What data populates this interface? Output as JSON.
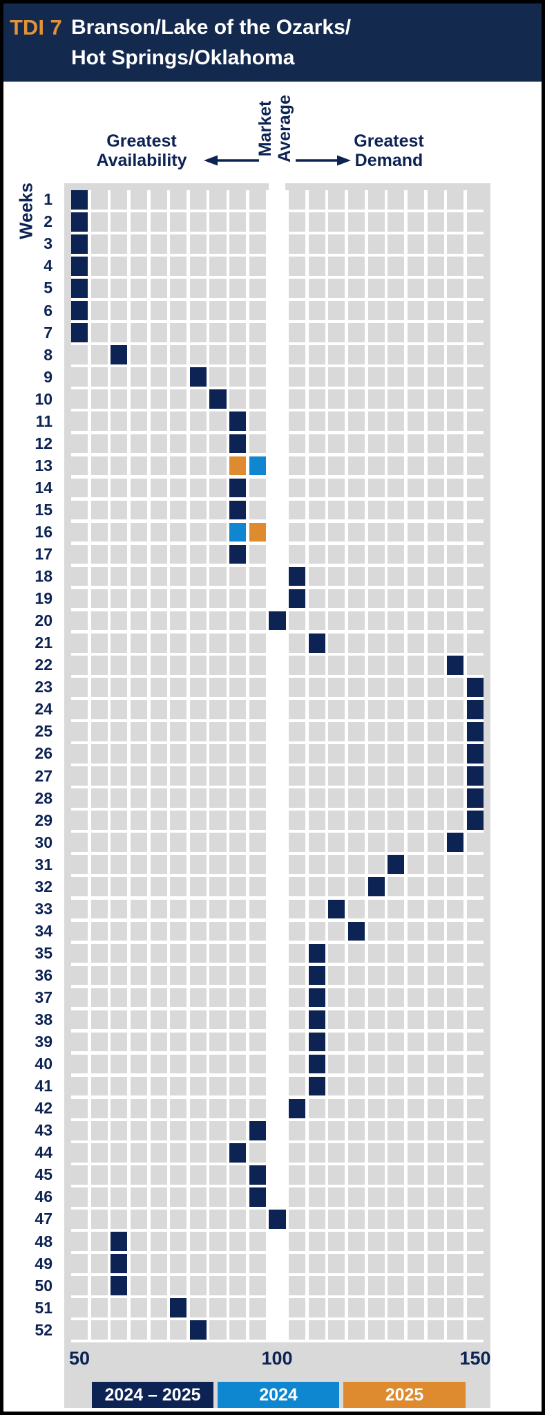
{
  "header": {
    "tag": "TDI 7",
    "title_line1": "Branson/Lake of the Ozarks/",
    "title_line2": "Hot Springs/Oklahoma"
  },
  "chart_header": {
    "availability_line1": "Greatest",
    "availability_line2": "Availability",
    "market_line1": "Market",
    "market_line2": "Average",
    "demand_line1": "Greatest",
    "demand_line2": "Demand"
  },
  "y_axis": {
    "label": "Weeks"
  },
  "x_axis": {
    "ticks": [
      "50",
      "100",
      "150"
    ]
  },
  "legend": [
    {
      "label": "2024 – 2025",
      "series": "2024-2025",
      "color": "#0d2354"
    },
    {
      "label": "2024",
      "series": "2024",
      "color": "#0f86d0"
    },
    {
      "label": "2025",
      "series": "2025",
      "color": "#dd8b2e"
    }
  ],
  "colors": {
    "header_bg": "#14294e",
    "tag_orange": "#e2923a",
    "navy_text": "#0d2354",
    "cell_gray": "#d9d9d9",
    "market_average_band": "#ffffff",
    "series": {
      "2024-2025": "#0d2354",
      "2024": "#0f86d0",
      "2025": "#dd8b2e"
    }
  },
  "chart_data": {
    "type": "heatmap",
    "title": "TDI 7 Branson/Lake of the Ozarks/Hot Springs/Oklahoma",
    "xlabel_left": "Greatest Availability",
    "xlabel_center": "Market Average",
    "xlabel_right": "Greatest Demand",
    "ylabel": "Weeks",
    "x_min": 50,
    "x_max": 150,
    "cell_step": 5,
    "columns": 21,
    "market_average": 100,
    "tick_values": [
      50,
      100,
      150
    ],
    "weeks": [
      {
        "week": 1,
        "values": [
          {
            "tdi": 50,
            "series": "2024-2025"
          }
        ]
      },
      {
        "week": 2,
        "values": [
          {
            "tdi": 50,
            "series": "2024-2025"
          }
        ]
      },
      {
        "week": 3,
        "values": [
          {
            "tdi": 50,
            "series": "2024-2025"
          }
        ]
      },
      {
        "week": 4,
        "values": [
          {
            "tdi": 50,
            "series": "2024-2025"
          }
        ]
      },
      {
        "week": 5,
        "values": [
          {
            "tdi": 50,
            "series": "2024-2025"
          }
        ]
      },
      {
        "week": 6,
        "values": [
          {
            "tdi": 50,
            "series": "2024-2025"
          }
        ]
      },
      {
        "week": 7,
        "values": [
          {
            "tdi": 50,
            "series": "2024-2025"
          }
        ]
      },
      {
        "week": 8,
        "values": [
          {
            "tdi": 60,
            "series": "2024-2025"
          }
        ]
      },
      {
        "week": 9,
        "values": [
          {
            "tdi": 80,
            "series": "2024-2025"
          }
        ]
      },
      {
        "week": 10,
        "values": [
          {
            "tdi": 85,
            "series": "2024-2025"
          }
        ]
      },
      {
        "week": 11,
        "values": [
          {
            "tdi": 90,
            "series": "2024-2025"
          }
        ]
      },
      {
        "week": 12,
        "values": [
          {
            "tdi": 90,
            "series": "2024-2025"
          }
        ]
      },
      {
        "week": 13,
        "values": [
          {
            "tdi": 90,
            "series": "2025"
          },
          {
            "tdi": 95,
            "series": "2024"
          }
        ]
      },
      {
        "week": 14,
        "values": [
          {
            "tdi": 90,
            "series": "2024-2025"
          }
        ]
      },
      {
        "week": 15,
        "values": [
          {
            "tdi": 90,
            "series": "2024-2025"
          }
        ]
      },
      {
        "week": 16,
        "values": [
          {
            "tdi": 90,
            "series": "2024"
          },
          {
            "tdi": 95,
            "series": "2025"
          }
        ]
      },
      {
        "week": 17,
        "values": [
          {
            "tdi": 90,
            "series": "2024-2025"
          }
        ]
      },
      {
        "week": 18,
        "values": [
          {
            "tdi": 105,
            "series": "2024-2025"
          }
        ]
      },
      {
        "week": 19,
        "values": [
          {
            "tdi": 105,
            "series": "2024-2025"
          }
        ]
      },
      {
        "week": 20,
        "values": [
          {
            "tdi": 100,
            "series": "2024-2025"
          }
        ]
      },
      {
        "week": 21,
        "values": [
          {
            "tdi": 110,
            "series": "2024-2025"
          }
        ]
      },
      {
        "week": 22,
        "values": [
          {
            "tdi": 145,
            "series": "2024-2025"
          }
        ]
      },
      {
        "week": 23,
        "values": [
          {
            "tdi": 150,
            "series": "2024-2025"
          }
        ]
      },
      {
        "week": 24,
        "values": [
          {
            "tdi": 150,
            "series": "2024-2025"
          }
        ]
      },
      {
        "week": 25,
        "values": [
          {
            "tdi": 150,
            "series": "2024-2025"
          }
        ]
      },
      {
        "week": 26,
        "values": [
          {
            "tdi": 150,
            "series": "2024-2025"
          }
        ]
      },
      {
        "week": 27,
        "values": [
          {
            "tdi": 150,
            "series": "2024-2025"
          }
        ]
      },
      {
        "week": 28,
        "values": [
          {
            "tdi": 150,
            "series": "2024-2025"
          }
        ]
      },
      {
        "week": 29,
        "values": [
          {
            "tdi": 150,
            "series": "2024-2025"
          }
        ]
      },
      {
        "week": 30,
        "values": [
          {
            "tdi": 145,
            "series": "2024-2025"
          }
        ]
      },
      {
        "week": 31,
        "values": [
          {
            "tdi": 130,
            "series": "2024-2025"
          }
        ]
      },
      {
        "week": 32,
        "values": [
          {
            "tdi": 125,
            "series": "2024-2025"
          }
        ]
      },
      {
        "week": 33,
        "values": [
          {
            "tdi": 115,
            "series": "2024-2025"
          }
        ]
      },
      {
        "week": 34,
        "values": [
          {
            "tdi": 120,
            "series": "2024-2025"
          }
        ]
      },
      {
        "week": 35,
        "values": [
          {
            "tdi": 110,
            "series": "2024-2025"
          }
        ]
      },
      {
        "week": 36,
        "values": [
          {
            "tdi": 110,
            "series": "2024-2025"
          }
        ]
      },
      {
        "week": 37,
        "values": [
          {
            "tdi": 110,
            "series": "2024-2025"
          }
        ]
      },
      {
        "week": 38,
        "values": [
          {
            "tdi": 110,
            "series": "2024-2025"
          }
        ]
      },
      {
        "week": 39,
        "values": [
          {
            "tdi": 110,
            "series": "2024-2025"
          }
        ]
      },
      {
        "week": 40,
        "values": [
          {
            "tdi": 110,
            "series": "2024-2025"
          }
        ]
      },
      {
        "week": 41,
        "values": [
          {
            "tdi": 110,
            "series": "2024-2025"
          }
        ]
      },
      {
        "week": 42,
        "values": [
          {
            "tdi": 105,
            "series": "2024-2025"
          }
        ]
      },
      {
        "week": 43,
        "values": [
          {
            "tdi": 95,
            "series": "2024-2025"
          }
        ]
      },
      {
        "week": 44,
        "values": [
          {
            "tdi": 90,
            "series": "2024-2025"
          }
        ]
      },
      {
        "week": 45,
        "values": [
          {
            "tdi": 95,
            "series": "2024-2025"
          }
        ]
      },
      {
        "week": 46,
        "values": [
          {
            "tdi": 95,
            "series": "2024-2025"
          }
        ]
      },
      {
        "week": 47,
        "values": [
          {
            "tdi": 100,
            "series": "2024-2025"
          }
        ]
      },
      {
        "week": 48,
        "values": [
          {
            "tdi": 60,
            "series": "2024-2025"
          }
        ]
      },
      {
        "week": 49,
        "values": [
          {
            "tdi": 60,
            "series": "2024-2025"
          }
        ]
      },
      {
        "week": 50,
        "values": [
          {
            "tdi": 60,
            "series": "2024-2025"
          }
        ]
      },
      {
        "week": 51,
        "values": [
          {
            "tdi": 75,
            "series": "2024-2025"
          }
        ]
      },
      {
        "week": 52,
        "values": [
          {
            "tdi": 80,
            "series": "2024-2025"
          }
        ]
      }
    ]
  }
}
